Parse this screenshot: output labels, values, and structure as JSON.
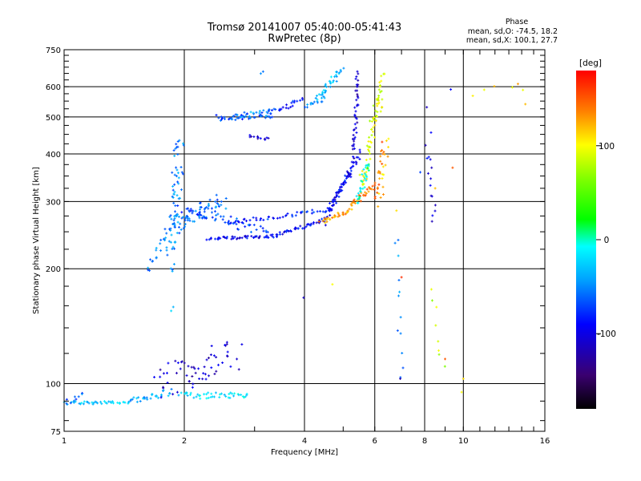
{
  "chart_data": {
    "type": "scatter",
    "title": "Tromsø 20141007 05:40:00-05:41:43",
    "subtitle": "RwPretec (8p)",
    "xlabel": "Frequency [MHz]",
    "ylabel": "Stationary phase Virtual Height [km]",
    "x_scale": "log",
    "y_scale": "log",
    "xlim": [
      1,
      16
    ],
    "ylim": [
      75,
      750
    ],
    "x_ticks": [
      "1",
      "2",
      "4",
      "6",
      "8",
      "10",
      "16"
    ],
    "y_ticks": [
      "75",
      "100",
      "200",
      "300",
      "400",
      "500",
      "600",
      "750"
    ],
    "grid": true,
    "stats": {
      "title": "Phase",
      "o_line": "mean, sd,O: -74.5, 18.2",
      "x_line": "mean, sd,X: 100.1, 27.7"
    },
    "colorbar": {
      "label": "[deg]",
      "range": [
        -180,
        180
      ],
      "ticks": [
        "100",
        "0",
        "-100"
      ],
      "tick_values": [
        100,
        0,
        -100
      ]
    },
    "traces": [
      {
        "from": [
          1.0,
          89
        ],
        "to": [
          1.45,
          89
        ],
        "n": 40,
        "phase": -28,
        "jitter": 0.012,
        "spread": 0.01
      },
      {
        "from": [
          1.45,
          90
        ],
        "to": [
          1.85,
          95
        ],
        "n": 30,
        "phase": -40,
        "jitter": 0.012,
        "spread": 0.02
      },
      {
        "from": [
          1.0,
          88
        ],
        "to": [
          1.12,
          95
        ],
        "n": 10,
        "phase": -60,
        "jitter": 0.01,
        "spread": 0.02
      },
      {
        "from": [
          1.95,
          93
        ],
        "to": [
          2.9,
          93
        ],
        "n": 45,
        "phase": -20,
        "jitter": 0.012,
        "spread": 0.018
      },
      {
        "from": [
          1.75,
          100
        ],
        "to": [
          2.7,
          120
        ],
        "n": 60,
        "phase": -110,
        "jitter": 0.05,
        "spread": 0.09
      },
      {
        "from": [
          1.85,
          155
        ],
        "to": [
          1.88,
          158
        ],
        "n": 2,
        "phase": -40,
        "jitter": 0.005,
        "spread": 0.005
      },
      {
        "from": [
          1.62,
          198
        ],
        "to": [
          1.82,
          248
        ],
        "n": 18,
        "phase": -55,
        "jitter": 0.012,
        "spread": 0.03
      },
      {
        "from": [
          1.85,
          210
        ],
        "to": [
          1.95,
          420
        ],
        "n": 70,
        "phase": -50,
        "jitter": 0.03,
        "spread": 0.08
      },
      {
        "from": [
          1.85,
          255
        ],
        "to": [
          2.5,
          300
        ],
        "n": 70,
        "phase": -55,
        "jitter": 0.05,
        "spread": 0.05
      },
      {
        "from": [
          2.0,
          290
        ],
        "to": [
          3.2,
          250
        ],
        "n": 55,
        "phase": -70,
        "jitter": 0.05,
        "spread": 0.03
      },
      {
        "from": [
          2.3,
          240
        ],
        "to": [
          3.3,
          243
        ],
        "n": 45,
        "phase": -95,
        "jitter": 0.015,
        "spread": 0.008
      },
      {
        "from": [
          3.3,
          243
        ],
        "to": [
          4.5,
          268
        ],
        "n": 45,
        "phase": -90,
        "jitter": 0.012,
        "spread": 0.01
      },
      {
        "from": [
          2.6,
          265
        ],
        "to": [
          4.6,
          285
        ],
        "n": 45,
        "phase": -80,
        "jitter": 0.012,
        "spread": 0.012
      },
      {
        "from": [
          4.5,
          268
        ],
        "to": [
          5.5,
          400
        ],
        "n": 55,
        "phase": -95,
        "jitter": 0.01,
        "spread": 0.03
      },
      {
        "from": [
          4.6,
          285
        ],
        "to": [
          5.2,
          360
        ],
        "n": 30,
        "phase": -90,
        "jitter": 0.01,
        "spread": 0.02
      },
      {
        "from": [
          4.4,
          265
        ],
        "to": [
          5.2,
          285
        ],
        "n": 30,
        "phase": 130,
        "jitter": 0.012,
        "spread": 0.01
      },
      {
        "from": [
          5.2,
          290
        ],
        "to": [
          6.0,
          330
        ],
        "n": 30,
        "phase": 140,
        "jitter": 0.01,
        "spread": 0.02
      },
      {
        "from": [
          5.3,
          400
        ],
        "to": [
          5.45,
          640
        ],
        "n": 45,
        "phase": -110,
        "jitter": 0.01,
        "spread": 0.05
      },
      {
        "from": [
          5.55,
          330
        ],
        "to": [
          6.2,
          560
        ],
        "n": 50,
        "phase": 95,
        "jitter": 0.015,
        "spread": 0.06
      },
      {
        "from": [
          5.9,
          480
        ],
        "to": [
          6.3,
          640
        ],
        "n": 25,
        "phase": 90,
        "jitter": 0.012,
        "spread": 0.04
      },
      {
        "from": [
          6.0,
          310
        ],
        "to": [
          6.3,
          420
        ],
        "n": 20,
        "phase": 140,
        "jitter": 0.012,
        "spread": 0.04
      },
      {
        "from": [
          6.2,
          300
        ],
        "to": [
          6.5,
          430
        ],
        "n": 15,
        "phase": 115,
        "jitter": 0.015,
        "spread": 0.04
      },
      {
        "from": [
          5.45,
          300
        ],
        "to": [
          5.8,
          380
        ],
        "n": 30,
        "phase": 0,
        "jitter": 0.015,
        "spread": 0.04
      },
      {
        "from": [
          4.3,
          560
        ],
        "to": [
          4.95,
          660
        ],
        "n": 35,
        "phase": -30,
        "jitter": 0.015,
        "spread": 0.02
      },
      {
        "from": [
          4.0,
          530
        ],
        "to": [
          4.5,
          560
        ],
        "n": 15,
        "phase": -45,
        "jitter": 0.012,
        "spread": 0.015
      },
      {
        "from": [
          2.4,
          498
        ],
        "to": [
          3.3,
          505
        ],
        "n": 35,
        "phase": -70,
        "jitter": 0.02,
        "spread": 0.02
      },
      {
        "from": [
          2.6,
          500
        ],
        "to": [
          3.3,
          515
        ],
        "n": 25,
        "phase": -45,
        "jitter": 0.02,
        "spread": 0.02
      },
      {
        "from": [
          3.25,
          505
        ],
        "to": [
          3.95,
          555
        ],
        "n": 25,
        "phase": -80,
        "jitter": 0.015,
        "spread": 0.02
      },
      {
        "from": [
          2.9,
          445
        ],
        "to": [
          3.25,
          438
        ],
        "n": 12,
        "phase": -110,
        "jitter": 0.012,
        "spread": 0.01
      },
      {
        "from": [
          3.1,
          650
        ],
        "to": [
          3.15,
          655
        ],
        "n": 2,
        "phase": -45,
        "jitter": 0.005,
        "spread": 0.005
      },
      {
        "from": [
          6.8,
          240
        ],
        "to": [
          7.0,
          105
        ],
        "n": 12,
        "phase": -50,
        "jitter": 0.012,
        "spread": 0.05
      },
      {
        "from": [
          8.1,
          420
        ],
        "to": [
          8.5,
          270
        ],
        "n": 14,
        "phase": -100,
        "jitter": 0.015,
        "spread": 0.05
      },
      {
        "from": [
          8.3,
          180
        ],
        "to": [
          8.9,
          110
        ],
        "n": 8,
        "phase": 80,
        "jitter": 0.02,
        "spread": 0.06
      },
      {
        "from": [
          10.5,
          580
        ],
        "to": [
          14.0,
          600
        ],
        "n": 5,
        "phase": 110,
        "jitter": 0.02,
        "spread": 0.03
      }
    ],
    "points": [
      {
        "x": 3.98,
        "y": 168,
        "phase": -110
      },
      {
        "x": 4.7,
        "y": 182,
        "phase": 100
      },
      {
        "x": 6.95,
        "y": 103,
        "phase": -120
      },
      {
        "x": 7.0,
        "y": 190,
        "phase": 165
      },
      {
        "x": 6.8,
        "y": 284,
        "phase": 110
      },
      {
        "x": 7.8,
        "y": 358,
        "phase": -70
      },
      {
        "x": 8.1,
        "y": 530,
        "phase": -115
      },
      {
        "x": 8.3,
        "y": 455,
        "phase": -90
      },
      {
        "x": 8.5,
        "y": 325,
        "phase": 120
      },
      {
        "x": 9.0,
        "y": 116,
        "phase": 150
      },
      {
        "x": 9.3,
        "y": 590,
        "phase": -90
      },
      {
        "x": 9.4,
        "y": 368,
        "phase": 150
      },
      {
        "x": 9.9,
        "y": 95,
        "phase": 100
      },
      {
        "x": 10.0,
        "y": 103,
        "phase": 110
      },
      {
        "x": 13.7,
        "y": 610,
        "phase": 130
      },
      {
        "x": 14.3,
        "y": 540,
        "phase": 120
      }
    ]
  }
}
